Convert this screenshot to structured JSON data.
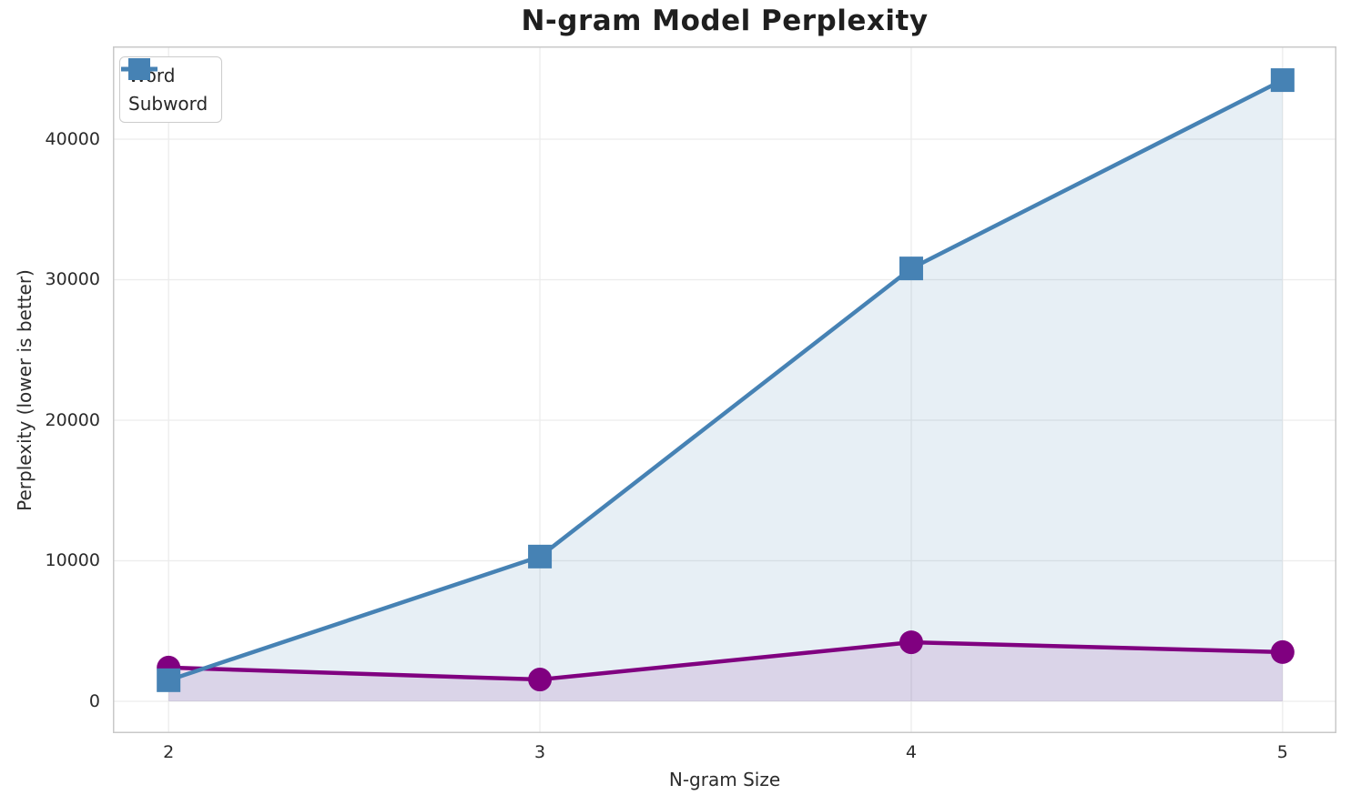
{
  "chart_data": {
    "type": "line",
    "title": "N-gram Model Perplexity",
    "xlabel": "N-gram Size",
    "ylabel": "Perplexity (lower is better)",
    "x": [
      2,
      3,
      4,
      5
    ],
    "series": [
      {
        "name": "Word",
        "color": "#800080",
        "marker": "circle",
        "fill_to_zero": true,
        "fill_alpha": 0.12,
        "values": [
          2400,
          1550,
          4200,
          3500
        ]
      },
      {
        "name": "Subword",
        "color": "#4682B4",
        "marker": "square",
        "fill_to_zero": true,
        "fill_alpha": 0.13,
        "values": [
          1500,
          10300,
          30800,
          44200
        ]
      }
    ],
    "xticks": [
      2,
      3,
      4,
      5
    ],
    "yticks": [
      0,
      10000,
      20000,
      30000,
      40000
    ],
    "xlim": [
      1.85,
      5.145
    ],
    "ylim": [
      -2265,
      46600
    ],
    "grid": true,
    "legend_position": "upper left"
  },
  "colors": {
    "word_line": "#800080",
    "subword_line": "#4682B4",
    "gridline": "#ECECEC",
    "spine": "#C9C9C9",
    "text": "#262626",
    "background": "#FFFFFF"
  }
}
